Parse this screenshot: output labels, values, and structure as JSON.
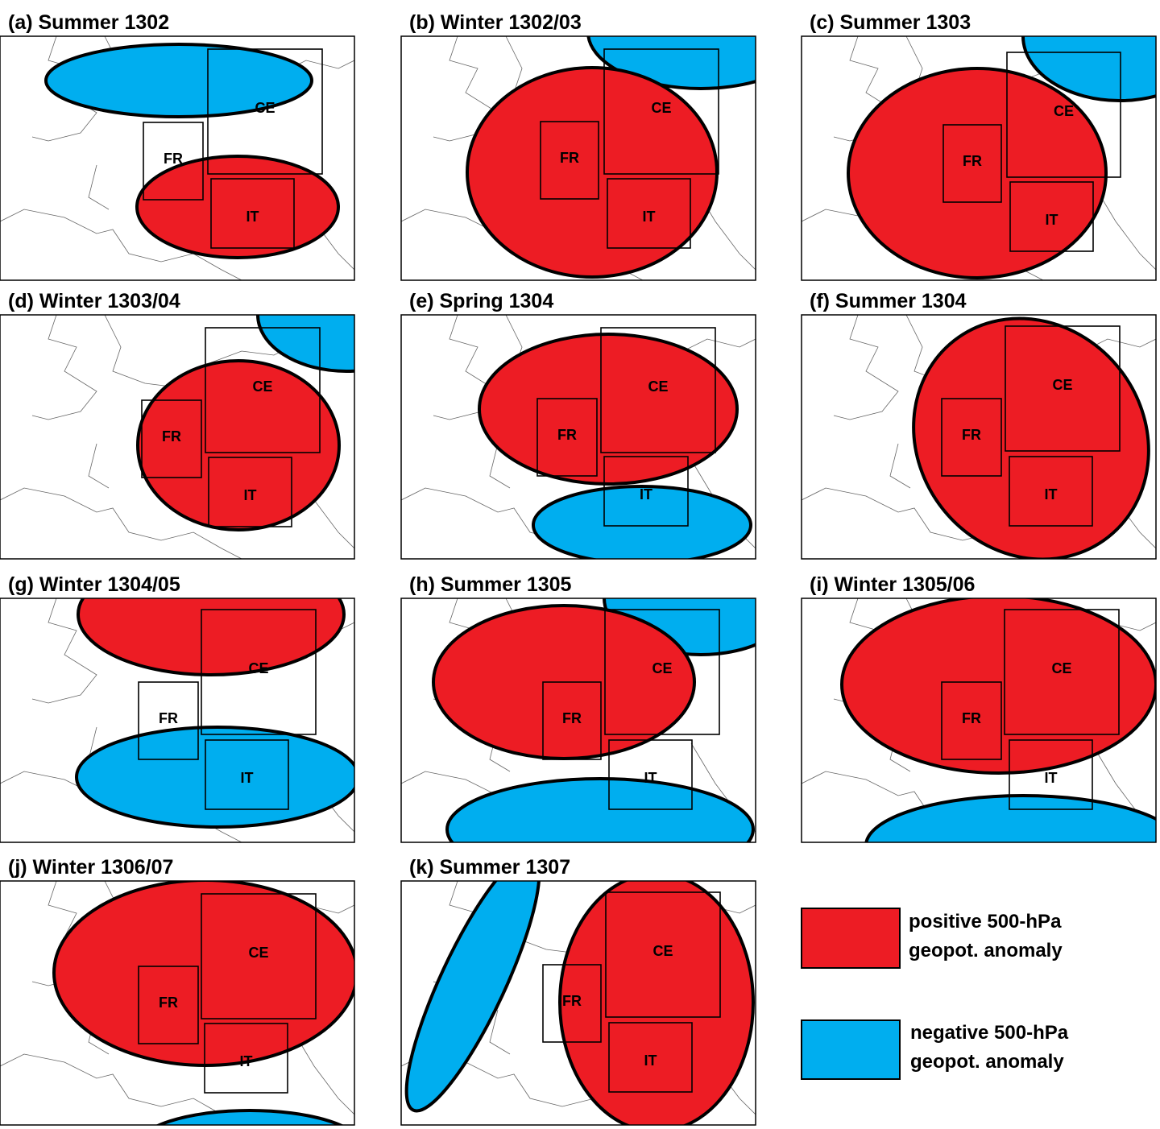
{
  "panels": [
    {
      "title": "(a) Summer 1302",
      "regions": [
        "CE",
        "FR",
        "IT"
      ]
    },
    {
      "title": "(b) Winter 1302/03",
      "regions": [
        "CE",
        "FR",
        "IT"
      ]
    },
    {
      "title": "(c) Summer 1303",
      "regions": [
        "CE",
        "FR",
        "IT"
      ]
    },
    {
      "title": "(d) Winter 1303/04",
      "regions": [
        "CE",
        "FR",
        "IT"
      ]
    },
    {
      "title": "(e) Spring 1304",
      "regions": [
        "CE",
        "FR",
        "IT"
      ]
    },
    {
      "title": "(f) Summer 1304",
      "regions": [
        "CE",
        "FR",
        "IT"
      ]
    },
    {
      "title": "(g) Winter 1304/05",
      "regions": [
        "CE",
        "FR",
        "IT"
      ]
    },
    {
      "title": "(h) Summer 1305",
      "regions": [
        "CE",
        "FR",
        "IT"
      ]
    },
    {
      "title": "(i) Winter 1305/06",
      "regions": [
        "CE",
        "FR",
        "IT"
      ]
    },
    {
      "title": "(j) Winter 1306/07",
      "regions": [
        "CE",
        "FR",
        "IT"
      ]
    },
    {
      "title": "(k) Summer 1307",
      "regions": [
        "CE",
        "FR",
        "IT"
      ]
    }
  ],
  "legend": {
    "positive": [
      "positive 500-hPa",
      "geopot. anomaly"
    ],
    "negative": [
      "negative 500-hPa",
      "geopot. anomaly"
    ]
  }
}
